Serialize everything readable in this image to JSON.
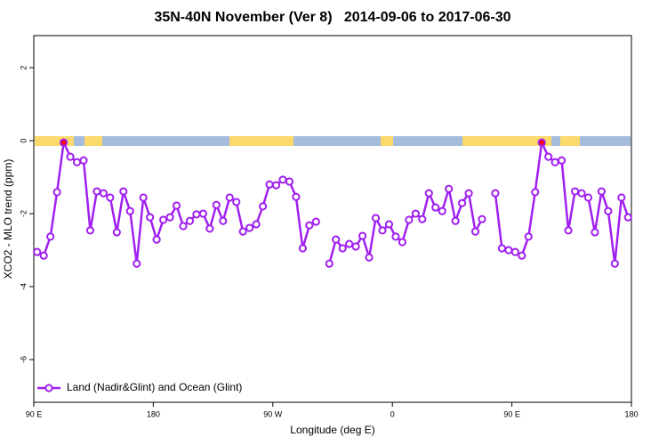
{
  "chart_data": {
    "type": "line",
    "title": "35N-40N November (Ver 8)   2014-09-06 to 2017-06-30",
    "x_label": "Longitude (deg E)",
    "y_label": "XCO2 - MLO trend (ppm)",
    "x": [
      92.5,
      97.5,
      102.5,
      107.5,
      112.5,
      117.5,
      122.5,
      127.5,
      132.5,
      137.5,
      142.5,
      147.5,
      152.5,
      157.5,
      162.5,
      167.5,
      172.5,
      177.5,
      182.5,
      187.5,
      192.5,
      197.5,
      202.5,
      207.5,
      212.5,
      217.5,
      222.5,
      227.5,
      232.5,
      237.5,
      242.5,
      247.5,
      252.5,
      257.5,
      262.5,
      267.5,
      272.5,
      277.5,
      282.5,
      287.5,
      292.5,
      297.5,
      302.5,
      307.5,
      312.5,
      317.5,
      322.5,
      327.5,
      332.5,
      337.5,
      342.5,
      347.5,
      352.5,
      357.5,
      362.5,
      367.5,
      372.5,
      377.5,
      382.5,
      387.5,
      392.5,
      397.5,
      402.5,
      407.5,
      412.5,
      417.5,
      422.5,
      427.5,
      432.5,
      437.5,
      442.5,
      447.5,
      452.5,
      457.5,
      462.5,
      467.5,
      472.5,
      477.5,
      482.5,
      487.5,
      492.5,
      497.5,
      502.5,
      507.5,
      512.5,
      517.5,
      522.5,
      527.5,
      532.5,
      537.5
    ],
    "series": [
      {
        "name": "Land (Nadir&Glint) and Ocean (Glint)",
        "color": "#a020f0",
        "values": [
          -3.05,
          -3.15,
          -2.63,
          -1.41,
          -0.05,
          -0.44,
          -0.59,
          -0.54,
          -2.46,
          -1.39,
          -1.44,
          -1.56,
          -2.51,
          -1.39,
          -1.93,
          -3.37,
          -1.56,
          -2.1,
          -2.71,
          -2.17,
          -2.1,
          -1.78,
          -2.34,
          -2.2,
          -2.02,
          -2.0,
          -2.41,
          -1.76,
          -2.2,
          -1.56,
          -1.68,
          -2.49,
          -2.39,
          -2.29,
          -1.8,
          -1.2,
          -1.22,
          -1.07,
          -1.12,
          -1.54,
          -2.95,
          -2.32,
          -2.22,
          null,
          -3.37,
          -2.71,
          -2.95,
          -2.83,
          -2.9,
          -2.61,
          -3.2,
          -2.12,
          -2.46,
          -2.29,
          -2.63,
          -2.78,
          -2.17,
          -2.0,
          -2.15,
          -1.44,
          -1.83,
          -1.93,
          -1.32,
          -2.2,
          -1.71,
          -1.44,
          -2.49,
          -2.15,
          null,
          -1.44,
          -2.95,
          -3.0,
          -3.05,
          -3.15,
          -2.63,
          -1.41,
          -0.05,
          -0.44,
          -0.59,
          -0.54,
          -2.46,
          -1.39,
          -1.44,
          -1.56,
          -2.51,
          -1.39,
          -1.93,
          -3.37,
          -1.56,
          -2.1
        ]
      }
    ],
    "highlight_color": "#ff0000",
    "xlim": [
      90,
      540
    ],
    "xticks": [
      {
        "value": 90,
        "label": "90 E"
      },
      {
        "value": 180,
        "label": "180"
      },
      {
        "value": 270,
        "label": "90 W"
      },
      {
        "value": 360,
        "label": "0"
      },
      {
        "value": 450,
        "label": "90 E"
      },
      {
        "value": 540,
        "label": "180"
      }
    ],
    "ylim": [
      -7.17,
      2.88
    ],
    "yticks": [
      2,
      0,
      -2,
      -4,
      -6
    ],
    "legend": "bottom-left"
  }
}
